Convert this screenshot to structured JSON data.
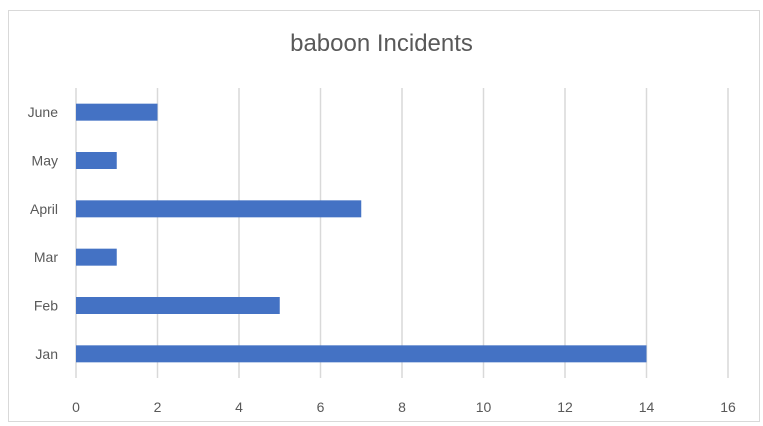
{
  "chart_data": {
    "type": "bar",
    "orientation": "horizontal",
    "title": "baboon Incidents",
    "categories": [
      "Jan",
      "Feb",
      "Mar",
      "April",
      "May",
      "June"
    ],
    "values": [
      14,
      5,
      1,
      7,
      1,
      2
    ],
    "xlim": [
      0,
      16
    ],
    "xticks": [
      0,
      2,
      4,
      6,
      8,
      10,
      12,
      14,
      16
    ],
    "xlabel": "",
    "ylabel": "",
    "grid": "vertical",
    "legend": "none",
    "bar_color": "#4472C4",
    "grid_color": "#d9d9d9"
  }
}
